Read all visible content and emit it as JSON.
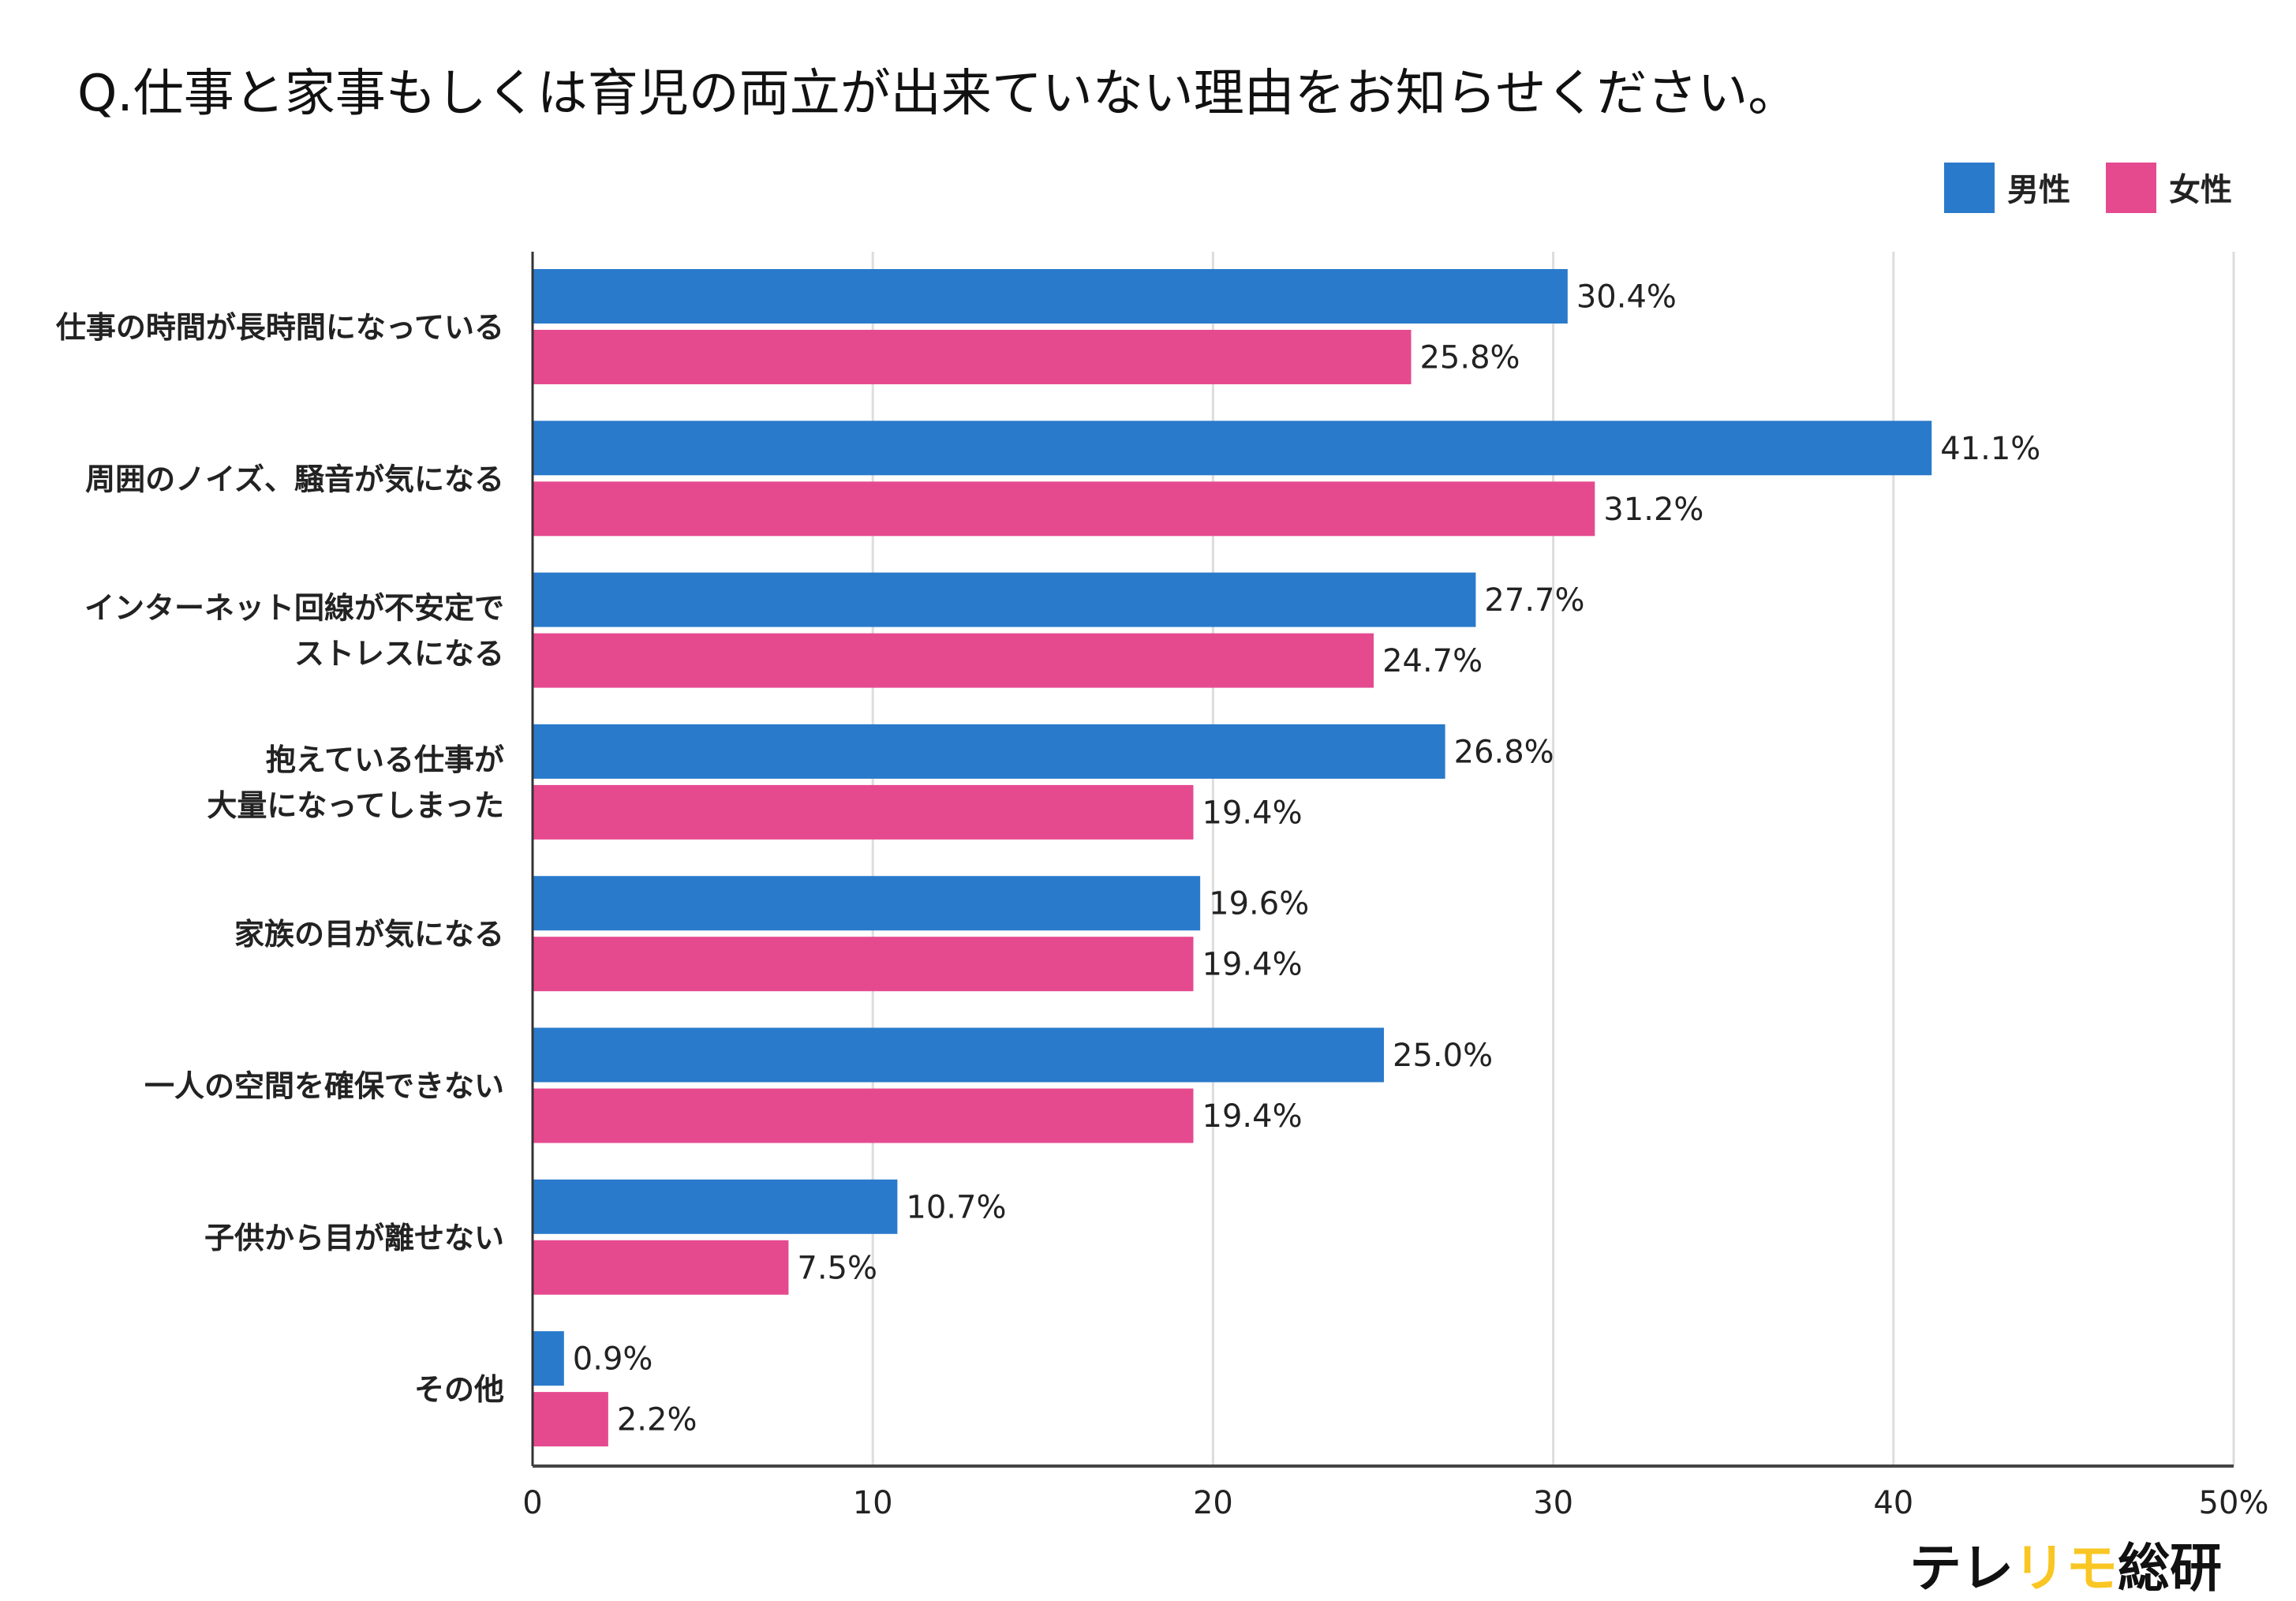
{
  "chart_data": {
    "type": "bar",
    "orientation": "horizontal",
    "title": "Q.仕事と家事もしくは育児の両立が出来ていない理由をお知らせください。",
    "categories": [
      [
        "仕事の時間が長時間になっている"
      ],
      [
        "周囲のノイズ、騒音が気になる"
      ],
      [
        "インターネット回線が不安定で",
        "ストレスになる"
      ],
      [
        "抱えている仕事が",
        "大量になってしまった"
      ],
      [
        "家族の目が気になる"
      ],
      [
        "一人の空間を確保できない"
      ],
      [
        "子供から目が離せない"
      ],
      [
        "その他"
      ]
    ],
    "series": [
      {
        "name": "男性",
        "color": "#2a7acb",
        "values": [
          30.4,
          41.1,
          27.7,
          26.8,
          19.6,
          25.0,
          10.7,
          0.9
        ],
        "labels": [
          "30.4%",
          "41.1%",
          "27.7%",
          "26.8%",
          "19.6%",
          "25.0%",
          "10.7%",
          "0.9%"
        ]
      },
      {
        "name": "女性",
        "color": "#e54a8f",
        "values": [
          25.8,
          31.2,
          24.7,
          19.4,
          19.4,
          19.4,
          7.5,
          2.2
        ],
        "labels": [
          "25.8%",
          "31.2%",
          "24.7%",
          "19.4%",
          "19.4%",
          "19.4%",
          "7.5%",
          "2.2%"
        ]
      }
    ],
    "xlim": [
      0,
      50
    ],
    "xticks": [
      "0",
      "10",
      "20",
      "30",
      "40",
      "50%"
    ],
    "grid": true,
    "legend_position": "top-right"
  },
  "brand": {
    "part1": "テレ",
    "part2": "リモ",
    "part3": "総研",
    "accent": "#f9c623"
  }
}
